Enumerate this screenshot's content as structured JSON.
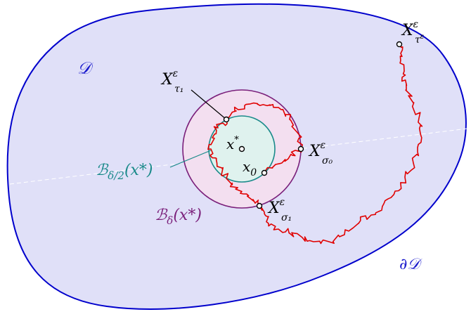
{
  "domain_labels": {
    "D": "𝒟",
    "boundary": "∂𝒟"
  },
  "ball_labels": {
    "big": {
      "main": "ℬ",
      "sub": "δ",
      "arg": "(x*)"
    },
    "small": {
      "main": "ℬ",
      "sub": "δ/2",
      "arg": "(x*)"
    }
  },
  "point_labels": {
    "x_star": {
      "main": "x",
      "sup": "*"
    },
    "x_0": {
      "main": "x",
      "sub": "0"
    },
    "X_tau_1": {
      "main": "X",
      "sup": "ε",
      "sub": "τ₁"
    },
    "X_sigma_0": {
      "main": "X",
      "sup": "ε",
      "sub": "σ₀"
    },
    "X_sigma_1": {
      "main": "X",
      "sup": "ε",
      "sub": "σ₁"
    },
    "X_tau_eps": {
      "main": "X",
      "sup": "ε",
      "sub": "τ",
      "subsup": "ε"
    }
  },
  "colors": {
    "domain_fill": "#e0e0f8",
    "domain_stroke": "#0000cc",
    "big_ball_fill": "#f3dff0",
    "big_ball_stroke": "#7a1f7a",
    "small_ball_fill": "#dff2ee",
    "small_ball_stroke": "#1a8a8a",
    "path": "#e00000",
    "text": "#000000",
    "blue_text": "#1a1acc",
    "purple_text": "#7a1f7a",
    "teal_text": "#1a8a8a"
  }
}
